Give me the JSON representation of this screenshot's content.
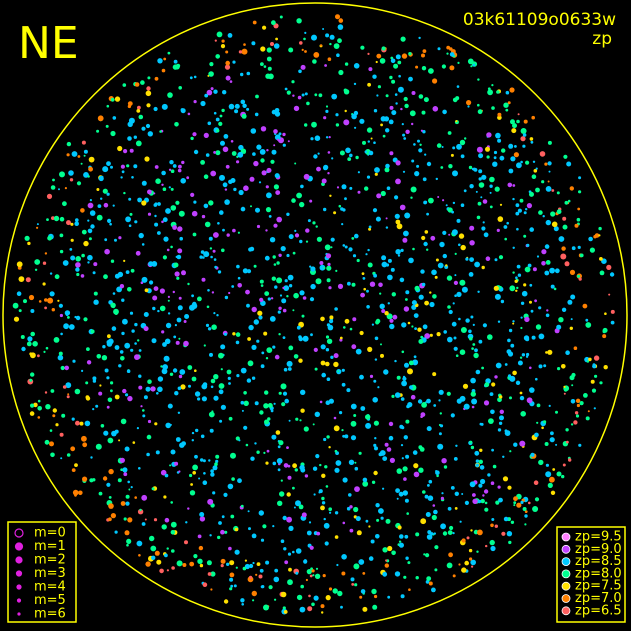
{
  "corner_label": "NE",
  "header": {
    "title": "03k61109o0633w",
    "subtitle": "zp"
  },
  "magnitude_legend": [
    "m=0",
    "m=1",
    "m=2",
    "m=3",
    "m=4",
    "m=5",
    "m=6"
  ],
  "zp_legend": [
    {
      "label": "zp=9.5",
      "color": "#ff80ff"
    },
    {
      "label": "zp=9.0",
      "color": "#c040ff"
    },
    {
      "label": "zp=8.5",
      "color": "#00c8ff"
    },
    {
      "label": "zp=8.0",
      "color": "#00ff90"
    },
    {
      "label": "zp=7.5",
      "color": "#ffe000"
    },
    {
      "label": "zp=7.0",
      "color": "#ff8000"
    },
    {
      "label": "zp=6.5",
      "color": "#ff6060"
    }
  ]
}
